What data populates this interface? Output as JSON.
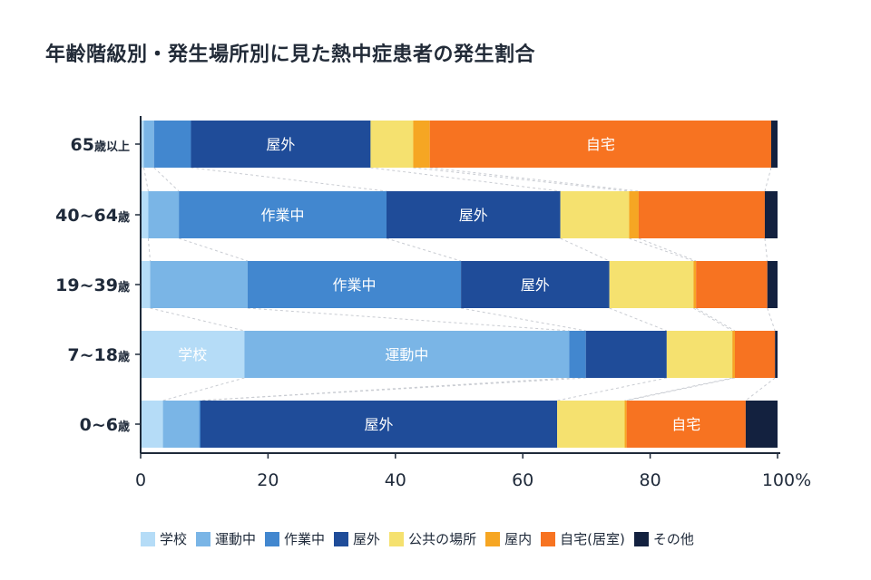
{
  "chart_data": {
    "type": "bar",
    "orientation": "horizontal",
    "stacked": true,
    "title": "年齢階級別・発生場所別に見た熱中症患者の発生割合",
    "categories": [
      "65歳以上",
      "40~64歳",
      "19~39歳",
      "7~18歳",
      "0~6歳"
    ],
    "category_labels": [
      {
        "main": "65",
        "unit": "歳以上"
      },
      {
        "main": "40~64",
        "unit": "歳"
      },
      {
        "main": "19~39",
        "unit": "歳"
      },
      {
        "main": "7~18",
        "unit": "歳"
      },
      {
        "main": "0~6",
        "unit": "歳"
      }
    ],
    "series": [
      {
        "name": "学校",
        "color": "#b5dcf7",
        "values": [
          0.5,
          1.2,
          1.5,
          16.3,
          3.5
        ]
      },
      {
        "name": "運動中",
        "color": "#7ab5e6",
        "values": [
          1.6,
          4.8,
          15.3,
          51.0,
          5.7
        ]
      },
      {
        "name": "作業中",
        "color": "#4287cf",
        "values": [
          5.8,
          32.6,
          33.5,
          2.6,
          0.2
        ]
      },
      {
        "name": "屋外",
        "color": "#1f4c99",
        "values": [
          28.2,
          27.3,
          23.3,
          12.7,
          56.0
        ]
      },
      {
        "name": "公共の場所",
        "color": "#f5e16f",
        "values": [
          6.7,
          10.8,
          13.2,
          10.3,
          10.6
        ]
      },
      {
        "name": "屋内",
        "color": "#f6a623",
        "values": [
          2.6,
          1.5,
          0.4,
          0.4,
          0.3
        ]
      },
      {
        "name": "自宅(居室)",
        "color": "#f77321",
        "values": [
          53.6,
          19.8,
          11.2,
          6.3,
          18.7
        ]
      },
      {
        "name": "その他",
        "color": "#13213f",
        "values": [
          1.0,
          2.0,
          1.6,
          0.4,
          5.0
        ]
      }
    ],
    "segment_labels": [
      {
        "row": 0,
        "series": 3,
        "text": "屋外"
      },
      {
        "row": 0,
        "series": 6,
        "text": "自宅"
      },
      {
        "row": 1,
        "series": 2,
        "text": "作業中"
      },
      {
        "row": 1,
        "series": 3,
        "text": "屋外"
      },
      {
        "row": 2,
        "series": 2,
        "text": "作業中"
      },
      {
        "row": 2,
        "series": 3,
        "text": "屋外"
      },
      {
        "row": 3,
        "series": 0,
        "text": "学校"
      },
      {
        "row": 3,
        "series": 1,
        "text": "運動中"
      },
      {
        "row": 4,
        "series": 3,
        "text": "屋外"
      },
      {
        "row": 4,
        "series": 6,
        "text": "自宅"
      }
    ],
    "xlim": [
      0,
      100
    ],
    "xticks": [
      "0",
      "20",
      "40",
      "60",
      "80",
      "100%"
    ],
    "xtick_values": [
      0,
      20,
      40,
      60,
      80,
      100
    ],
    "grid": false,
    "connector_lines": true,
    "legend_position": "bottom"
  }
}
